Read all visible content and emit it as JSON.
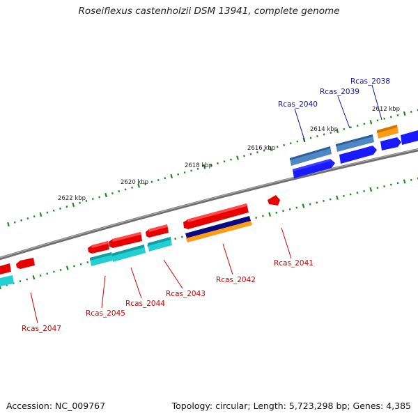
{
  "title": "Roseiflexus castenholzii DSM 13941, complete genome",
  "footer": {
    "accession": "Accession: NC_009767",
    "topology": "Topology: circular; Length: 5,723,298 bp; Genes: 4,385"
  },
  "colors": {
    "backbone": "#808080",
    "tick": "#1c8a1c",
    "forward_cds": "#e60000",
    "forward_gene": "#1a1aff",
    "forward_alt": "#4f87c4",
    "orange": "#ff9b14",
    "cyan": "#22cfd2",
    "navy": "#0a0a80",
    "label_blue": "#1010aa",
    "label_red": "#cc0000"
  },
  "scale_labels": [
    "2612 kbp",
    "2614 kbp",
    "2616 kbp",
    "2618 kbp",
    "2620 kbp",
    "2622 kbp"
  ],
  "gene_labels": {
    "top": [
      "Rcas_2038",
      "Rcas_2039",
      "Rcas_2040"
    ],
    "bottom": [
      "Rcas_2041",
      "Rcas_2042",
      "Rcas_2043",
      "Rcas_2044",
      "Rcas_2045",
      "Rcas_2047"
    ]
  }
}
